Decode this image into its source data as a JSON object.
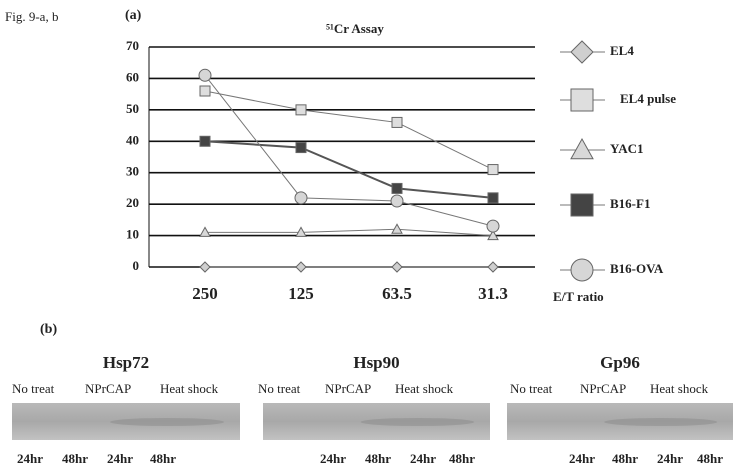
{
  "figure_label": "Fig. 9-a, b",
  "panel_a_label": "(a)",
  "chart_data": {
    "type": "line",
    "title": "⁵¹Cr Assay",
    "x_label": "E/T ratio",
    "categories": [
      "250",
      "125",
      "63.5",
      "31.3"
    ],
    "ylim": [
      0,
      70
    ],
    "yticks": [
      0,
      10,
      20,
      30,
      40,
      50,
      60,
      70
    ],
    "grid": true,
    "legend": "right",
    "series": [
      {
        "name": "EL4",
        "color": "#cfcfcf",
        "marker": "diamond",
        "values": [
          0,
          0,
          0,
          0
        ]
      },
      {
        "name": "EL4 pulse",
        "color": "#dedede",
        "marker": "square",
        "values": [
          56,
          50,
          46,
          31
        ]
      },
      {
        "name": "YAC1",
        "color": "#d8d8d8",
        "marker": "triangle",
        "values": [
          11,
          11,
          12,
          10
        ]
      },
      {
        "name": "B16-F1",
        "color": "#444444",
        "marker": "square",
        "values": [
          40,
          38,
          25,
          22
        ]
      },
      {
        "name": "B16-OVA",
        "color": "#d6d6d6",
        "marker": "circle",
        "values": [
          61,
          22,
          21,
          13
        ]
      }
    ]
  },
  "panel_b": {
    "label": "(b)",
    "blots": [
      {
        "title": "Hsp72",
        "treatments": [
          "No treat",
          "NPrCAP",
          "Heat shock"
        ],
        "lanes": [
          "24hr",
          "48hr",
          "24hr",
          "48hr"
        ]
      },
      {
        "title": "Hsp90",
        "treatments": [
          "No treat",
          "NPrCAP",
          "Heat shock"
        ],
        "lanes": [
          "24hr",
          "48hr",
          "24hr",
          "48hr"
        ]
      },
      {
        "title": "Gp96",
        "treatments": [
          "No treat",
          "NPrCAP",
          "Heat shock"
        ],
        "lanes": [
          "24hr",
          "48hr",
          "24hr",
          "48hr"
        ]
      }
    ]
  }
}
